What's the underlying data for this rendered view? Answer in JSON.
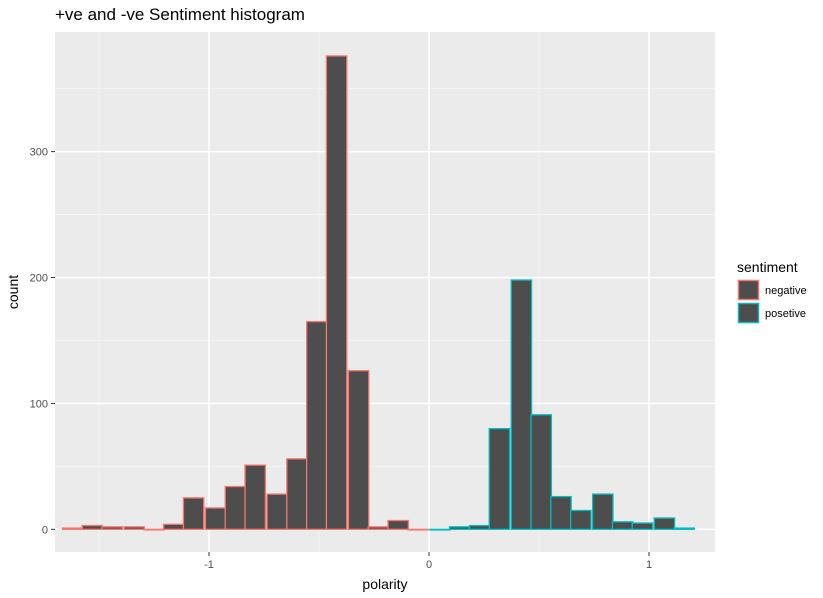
{
  "chart_data": {
    "type": "bar",
    "title": "+ve and -ve Sentiment histogram",
    "xlabel": "polarity",
    "ylabel": "count",
    "xlim": [
      -1.7,
      1.3
    ],
    "ylim": [
      -18,
      395
    ],
    "xticks": [
      -1,
      0,
      1
    ],
    "xtick_labels": [
      "-1",
      "0",
      "1"
    ],
    "yticks": [
      0,
      100,
      200,
      300
    ],
    "ytick_labels": [
      "0",
      "100",
      "200",
      "300"
    ],
    "grid": true,
    "bin_width": 0.0926,
    "fill_color": "#4d4d4d",
    "legend": {
      "title": "sentiment",
      "position": "right",
      "entries": [
        "negative",
        "posetive"
      ]
    },
    "series": [
      {
        "name": "negative",
        "color": "#f8766d",
        "x": [
          -1.62,
          -1.53,
          -1.44,
          -1.34,
          -1.25,
          -1.16,
          -1.07,
          -0.97,
          -0.88,
          -0.79,
          -0.69,
          -0.6,
          -0.51,
          -0.42,
          -0.32,
          -0.23,
          -0.14,
          -0.05
        ],
        "values": [
          1,
          3,
          2,
          2,
          0,
          4,
          25,
          17,
          34,
          51,
          28,
          56,
          165,
          376,
          126,
          2,
          7,
          0
        ]
      },
      {
        "name": "posetive",
        "color": "#00bfc4",
        "x": [
          0.05,
          0.14,
          0.23,
          0.32,
          0.42,
          0.51,
          0.6,
          0.69,
          0.79,
          0.88,
          0.97,
          1.07,
          1.16
        ],
        "values": [
          0,
          2,
          3,
          80,
          198,
          91,
          26,
          15,
          28,
          6,
          5,
          9,
          1
        ]
      }
    ]
  }
}
